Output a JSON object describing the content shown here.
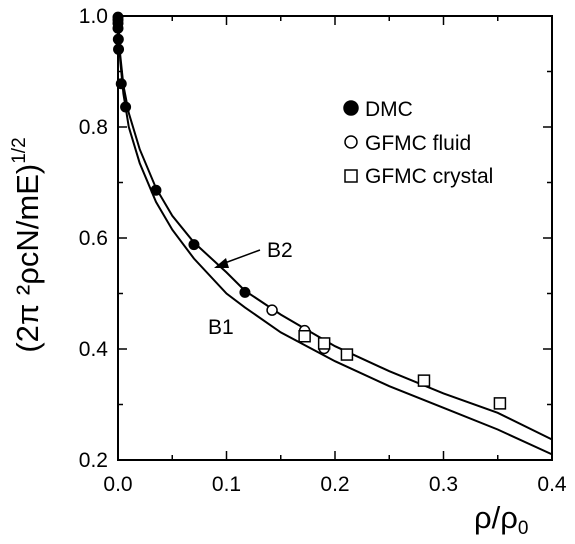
{
  "chart_data": {
    "type": "scatter",
    "xlabel": "ρ/ρ",
    "xlabel_sub": "0",
    "ylabel": "(2π  ²ρcN/mE)",
    "ylabel_sup": "1/2",
    "xlim": [
      0.0,
      0.4
    ],
    "ylim": [
      0.2,
      1.0
    ],
    "x_ticks": [
      "0.0",
      "0.1",
      "0.2",
      "0.3",
      "0.4"
    ],
    "y_ticks": [
      "0.2",
      "0.4",
      "0.6",
      "0.8",
      "1.0"
    ],
    "grid": false,
    "legend_position": "top-right",
    "series": [
      {
        "name": "DMC",
        "marker": "filled-circle",
        "points": [
          [
            0.0,
            0.998
          ],
          [
            0.0,
            0.993
          ],
          [
            0.0,
            0.987
          ],
          [
            0.0,
            0.978
          ],
          [
            0.0003,
            0.958
          ],
          [
            0.0005,
            0.94
          ],
          [
            0.003,
            0.878
          ],
          [
            0.007,
            0.836
          ],
          [
            0.035,
            0.686
          ],
          [
            0.07,
            0.588
          ],
          [
            0.117,
            0.502
          ],
          [
            0.172,
            0.43
          ]
        ]
      },
      {
        "name": "GFMC fluid",
        "marker": "open-circle",
        "points": [
          [
            0.142,
            0.47
          ],
          [
            0.172,
            0.433
          ],
          [
            0.19,
            0.401
          ]
        ]
      },
      {
        "name": "GFMC crystal",
        "marker": "open-square",
        "points": [
          [
            0.172,
            0.423
          ],
          [
            0.19,
            0.41
          ],
          [
            0.211,
            0.39
          ],
          [
            0.282,
            0.343
          ],
          [
            0.352,
            0.302
          ]
        ]
      }
    ],
    "curves": [
      {
        "name": "B2",
        "points": [
          [
            0.0,
            1.0
          ],
          [
            0.002,
            0.93
          ],
          [
            0.005,
            0.875
          ],
          [
            0.01,
            0.825
          ],
          [
            0.02,
            0.76
          ],
          [
            0.035,
            0.69
          ],
          [
            0.05,
            0.64
          ],
          [
            0.07,
            0.592
          ],
          [
            0.1,
            0.538
          ],
          [
            0.117,
            0.505
          ],
          [
            0.15,
            0.462
          ],
          [
            0.2,
            0.405
          ],
          [
            0.25,
            0.36
          ],
          [
            0.3,
            0.32
          ],
          [
            0.35,
            0.285
          ],
          [
            0.4,
            0.237
          ]
        ]
      },
      {
        "name": "B1",
        "points": [
          [
            0.0,
            1.0
          ],
          [
            0.002,
            0.92
          ],
          [
            0.005,
            0.86
          ],
          [
            0.01,
            0.8
          ],
          [
            0.02,
            0.735
          ],
          [
            0.035,
            0.665
          ],
          [
            0.05,
            0.615
          ],
          [
            0.07,
            0.563
          ],
          [
            0.1,
            0.5
          ],
          [
            0.117,
            0.475
          ],
          [
            0.15,
            0.43
          ],
          [
            0.2,
            0.378
          ],
          [
            0.25,
            0.333
          ],
          [
            0.3,
            0.294
          ],
          [
            0.35,
            0.255
          ],
          [
            0.4,
            0.21
          ]
        ]
      }
    ],
    "annotations": [
      "B2",
      "B1"
    ]
  }
}
